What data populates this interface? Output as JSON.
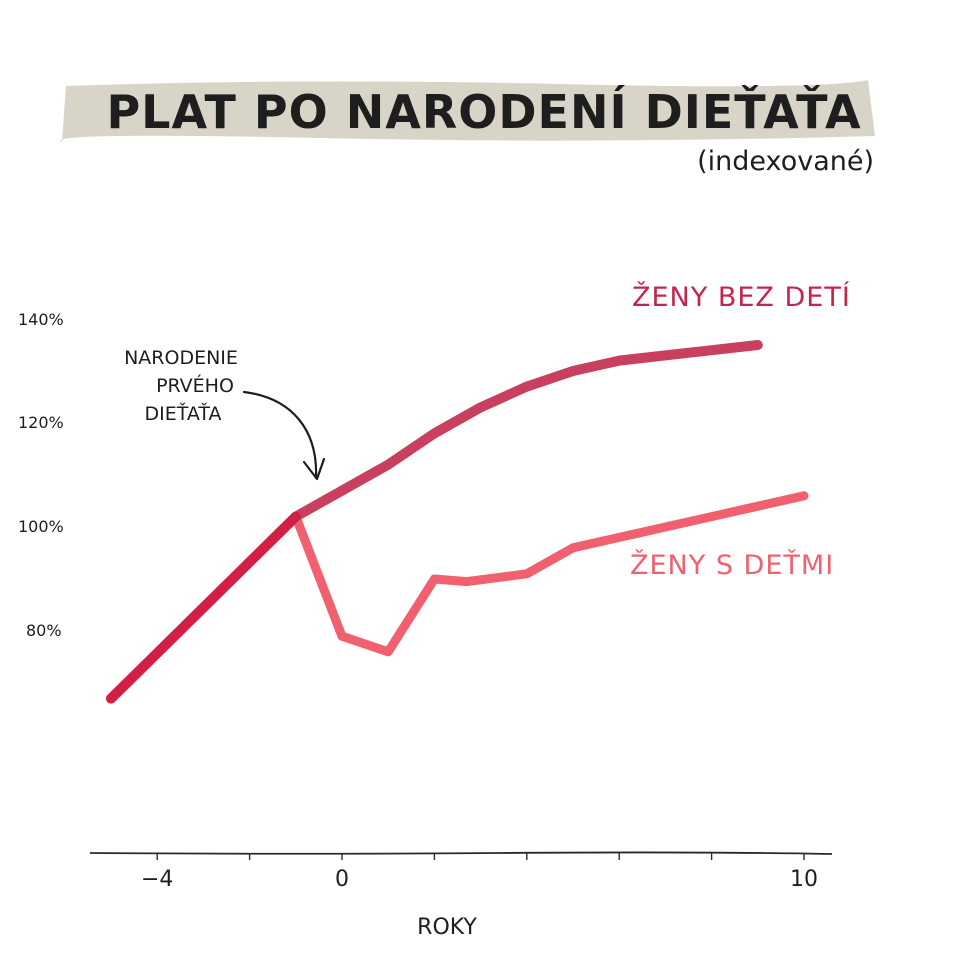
{
  "chart_data": {
    "type": "line",
    "title": "PLAT PO NARODENÍ DIEŤAŤA",
    "subtitle": "(indexované)",
    "xlabel": "ROKY",
    "ylabel": "",
    "xlim": [
      -5,
      10
    ],
    "ylim": [
      60,
      150
    ],
    "x_ticks": [
      -4,
      0,
      10
    ],
    "x_minor_ticks": [
      -4,
      -2,
      0,
      2,
      4,
      6,
      8,
      10
    ],
    "y_ticks": [
      80,
      100,
      120,
      140
    ],
    "y_tick_labels": [
      "80%",
      "100%",
      "120%",
      "140%"
    ],
    "grid": false,
    "legend": "direct labels at line ends",
    "annotation": [
      "NARODENIE",
      "PRVÉHO",
      "DIEŤAŤA"
    ],
    "series": [
      {
        "name": "ŽENY BEZ DETÍ",
        "color": "#c8405d",
        "x": [
          -5,
          -1,
          0,
          1,
          2,
          3,
          4,
          5,
          6,
          7,
          8,
          9
        ],
        "y": [
          67,
          102,
          107,
          112,
          118,
          123,
          127,
          130,
          132,
          133,
          134,
          135
        ]
      },
      {
        "name": "ŽENY S DEŤMI",
        "color": "#f0606e",
        "x": [
          -1,
          0,
          1,
          2,
          2.7,
          4,
          5,
          6,
          7,
          8,
          9,
          10
        ],
        "y": [
          102,
          79,
          76,
          90,
          89.5,
          91,
          96,
          98,
          100,
          102,
          104,
          106
        ]
      }
    ],
    "common_segment": {
      "color": "#d41f45",
      "x": [
        -5,
        -1
      ],
      "y": [
        67,
        102
      ]
    }
  }
}
